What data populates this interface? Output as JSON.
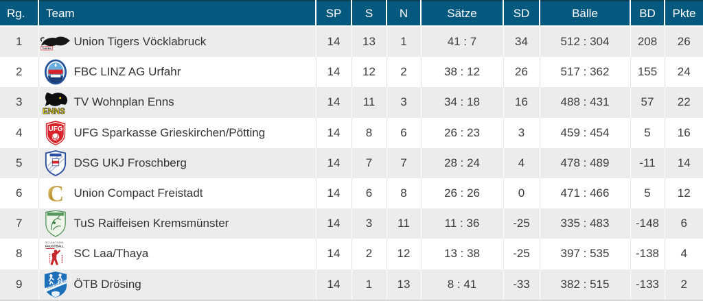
{
  "standings_table": {
    "columns": [
      {
        "key": "rank",
        "label": "Rg."
      },
      {
        "key": "team",
        "label": "Team"
      },
      {
        "key": "sp",
        "label": "SP"
      },
      {
        "key": "s",
        "label": "S"
      },
      {
        "key": "n",
        "label": "N"
      },
      {
        "key": "saetze",
        "label": "Sätze"
      },
      {
        "key": "sd",
        "label": "SD"
      },
      {
        "key": "baelle",
        "label": "Bälle"
      },
      {
        "key": "bd",
        "label": "BD"
      },
      {
        "key": "pkte",
        "label": "Pkte"
      }
    ],
    "rows": [
      {
        "rank": "1",
        "team": "Union Tigers Vöcklabruck",
        "logo": "union-tigers-voecklabruck",
        "logo_text": "TIGERS",
        "sp": "14",
        "s": "13",
        "n": "1",
        "saetze": "41 : 7",
        "sd": "34",
        "baelle": "512 : 304",
        "bd": "208",
        "pkte": "26"
      },
      {
        "rank": "2",
        "team": "FBC LINZ AG Urfahr",
        "logo": "fbc-linz-ag-urfahr",
        "logo_text": "",
        "sp": "14",
        "s": "12",
        "n": "2",
        "saetze": "38 : 12",
        "sd": "26",
        "baelle": "517 : 362",
        "bd": "155",
        "pkte": "24"
      },
      {
        "rank": "3",
        "team": "TV Wohnplan Enns",
        "logo": "tv-wohnplan-enns",
        "logo_text": "ENNS",
        "sp": "14",
        "s": "11",
        "n": "3",
        "saetze": "34 : 18",
        "sd": "16",
        "baelle": "488 : 431",
        "bd": "57",
        "pkte": "22"
      },
      {
        "rank": "4",
        "team": "UFG Sparkasse Grieskirchen/Pötting",
        "logo": "ufg-grieskirchen-poetting",
        "logo_text": "UFG",
        "sp": "14",
        "s": "8",
        "n": "6",
        "saetze": "26 : 23",
        "sd": "3",
        "baelle": "459 : 454",
        "bd": "5",
        "pkte": "16"
      },
      {
        "rank": "5",
        "team": "DSG UKJ Froschberg",
        "logo": "dsg-ukj-froschberg",
        "logo_text": "",
        "sp": "14",
        "s": "7",
        "n": "7",
        "saetze": "28 : 24",
        "sd": "4",
        "baelle": "478 : 489",
        "bd": "-11",
        "pkte": "14"
      },
      {
        "rank": "6",
        "team": "Union Compact Freistadt",
        "logo": "union-compact-freistadt",
        "logo_text": "C",
        "sp": "14",
        "s": "6",
        "n": "8",
        "saetze": "26 : 26",
        "sd": "0",
        "baelle": "471 : 466",
        "bd": "5",
        "pkte": "12"
      },
      {
        "rank": "7",
        "team": "TuS Raiffeisen Kremsmünster",
        "logo": "tus-raiffeisen-kremsmuenster",
        "logo_text": "",
        "sp": "14",
        "s": "3",
        "n": "11",
        "saetze": "11 : 36",
        "sd": "-25",
        "baelle": "335 : 483",
        "bd": "-148",
        "pkte": "6"
      },
      {
        "rank": "8",
        "team": "SC Laa/Thaya",
        "logo": "sc-laa-thaya",
        "logo_text": "SC LAA/THAYA|FAUSTBALL",
        "sp": "14",
        "s": "2",
        "n": "12",
        "saetze": "13 : 38",
        "sd": "-25",
        "baelle": "397 : 535",
        "bd": "-138",
        "pkte": "4"
      },
      {
        "rank": "9",
        "team": "ÖTB Drösing",
        "logo": "oetb-droesing",
        "logo_text": "ÖTB DRÖSING",
        "sp": "14",
        "s": "1",
        "n": "13",
        "saetze": "8 : 41",
        "sd": "-33",
        "baelle": "382 : 515",
        "bd": "-133",
        "pkte": "2"
      }
    ],
    "colors": {
      "header_bg": "#05587e",
      "header_text": "#ffffff",
      "row_odd_bg": "#ececec",
      "row_even_bg": "#ffffff",
      "body_text": "#3c3c3c",
      "top_border": "#0c4056",
      "bottom_border": "#d6d6d6",
      "cell_separator": "#e2e2e2"
    }
  }
}
